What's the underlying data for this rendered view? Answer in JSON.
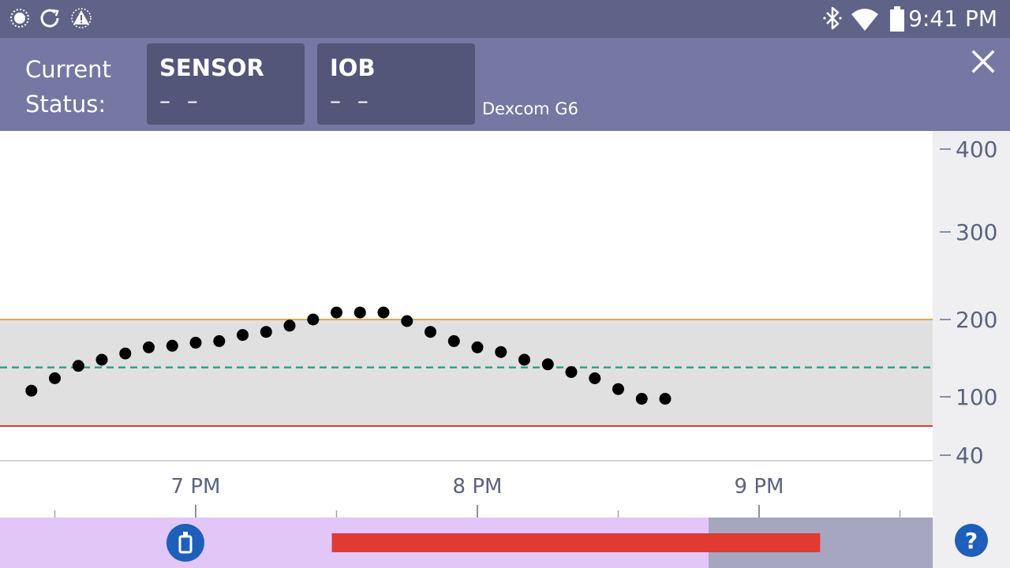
{
  "status_bar": {
    "time": "9:41 PM",
    "left_icons": [
      "brightness-icon",
      "refresh-icon",
      "alert-icon"
    ],
    "right_icons": [
      "bluetooth-icon",
      "wifi-icon",
      "battery-icon"
    ]
  },
  "header": {
    "label_line1": "Current",
    "label_line2": "Status:",
    "sensor": {
      "title": "SENSOR",
      "value": "– –"
    },
    "iob": {
      "title": "IOB",
      "value": "– –"
    },
    "device": "Dexcom G6",
    "close_icon": "close-icon"
  },
  "colors": {
    "status_bar": "#5f6387",
    "header": "#7578a2",
    "tile": "#535679",
    "target_band": "#e0e0e0",
    "high_line": "#e8a94a",
    "low_line": "#d9403a",
    "target_line": "#23a98a",
    "reading_dot": "#000000",
    "activity_bar": "#e2c6f8",
    "activity_tail": "#a6a6c0",
    "suspension": "#e03a32",
    "icon_blue": "#1d5fba"
  },
  "chart_data": {
    "type": "scatter",
    "title": "",
    "xlabel": "",
    "ylabel": "",
    "y_ticks": [
      400,
      300,
      200,
      100,
      40
    ],
    "x_ticks": [
      "7 PM",
      "8 PM",
      "9 PM"
    ],
    "high_limit": 200,
    "low_limit": 70,
    "target": 138,
    "series": [
      {
        "points": [
          {
            "t": "6:25 PM",
            "v": 108
          },
          {
            "t": "6:30 PM",
            "v": 124
          },
          {
            "t": "6:35 PM",
            "v": 140
          },
          {
            "t": "6:40 PM",
            "v": 148
          },
          {
            "t": "6:45 PM",
            "v": 156
          },
          {
            "t": "6:50 PM",
            "v": 164
          },
          {
            "t": "6:55 PM",
            "v": 166
          },
          {
            "t": "7:00 PM",
            "v": 170
          },
          {
            "t": "7:05 PM",
            "v": 172
          },
          {
            "t": "7:10 PM",
            "v": 180
          },
          {
            "t": "7:15 PM",
            "v": 184
          },
          {
            "t": "7:20 PM",
            "v": 192
          },
          {
            "t": "7:25 PM",
            "v": 200
          },
          {
            "t": "7:30 PM",
            "v": 208
          },
          {
            "t": "7:35 PM",
            "v": 208
          },
          {
            "t": "7:40 PM",
            "v": 208
          },
          {
            "t": "7:45 PM",
            "v": 198
          },
          {
            "t": "7:50 PM",
            "v": 184
          },
          {
            "t": "7:55 PM",
            "v": 172
          },
          {
            "t": "8:00 PM",
            "v": 164
          },
          {
            "t": "8:05 PM",
            "v": 158
          },
          {
            "t": "8:10 PM",
            "v": 148
          },
          {
            "t": "8:15 PM",
            "v": 142
          },
          {
            "t": "8:20 PM",
            "v": 132
          },
          {
            "t": "8:25 PM",
            "v": 124
          },
          {
            "t": "8:30 PM",
            "v": 110
          },
          {
            "t": "8:35 PM",
            "v": 98
          },
          {
            "t": "8:40 PM",
            "v": 98
          }
        ]
      }
    ]
  },
  "activity": {
    "bolus_icon": "insulin-cartridge-icon",
    "help_icon": "help-icon",
    "suspension_start": "7:29 PM",
    "suspension_end": "9:13 PM"
  }
}
